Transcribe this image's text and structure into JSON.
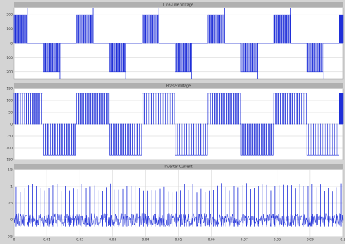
{
  "colors": {
    "background": "#d4d4d4",
    "plot_bg": "#ffffff",
    "title_bar": "#b0b0b0",
    "trace": "#1f2fd8",
    "grid": "#cfcfcf",
    "text": "#333333"
  },
  "chart_data": [
    {
      "type": "line",
      "title": "Line-Line Voltage",
      "xlabel": "",
      "ylabel": "",
      "yticks": [
        "200",
        "100",
        "0",
        "-100",
        "-200"
      ],
      "ylim": [
        -250,
        250
      ],
      "xlim": [
        0,
        0.1
      ],
      "grid": true,
      "waveform": {
        "kind": "pwm_square",
        "period": 0.02,
        "levels": [
          200,
          0,
          -200,
          0
        ],
        "level_fractions": [
          0.25,
          0.25,
          0.25,
          0.25
        ],
        "spikes": [
          250,
          -250
        ]
      }
    },
    {
      "type": "line",
      "title": "Phase Voltage",
      "xlabel": "",
      "ylabel": "",
      "yticks": [
        "150",
        "100",
        "50",
        "0",
        "-50",
        "-100",
        "-150"
      ],
      "ylim": [
        -150,
        150
      ],
      "xlim": [
        0,
        0.1
      ],
      "grid": true,
      "waveform": {
        "kind": "pwm_square",
        "period": 0.02,
        "levels": [
          130,
          -130
        ],
        "level_fractions": [
          0.5,
          0.5
        ]
      }
    },
    {
      "type": "line",
      "title": "Inverter Current",
      "xlabel": "",
      "ylabel": "",
      "yticks": [
        "1.5",
        "1",
        "0.5",
        "0",
        "-0.5"
      ],
      "xticks": [
        "0",
        "0.01",
        "0.02",
        "0.03",
        "0.04",
        "0.05",
        "0.06",
        "0.07",
        "0.08",
        "0.09",
        "0.1"
      ],
      "ylim": [
        -0.5,
        1.5
      ],
      "xlim": [
        0,
        0.1
      ],
      "grid": true,
      "waveform": {
        "kind": "noisy_spiky",
        "baseline_band": [
          -0.2,
          0.2
        ],
        "spike_peak": 1.1,
        "spikes_per_period": 16,
        "period": 0.02
      }
    }
  ]
}
